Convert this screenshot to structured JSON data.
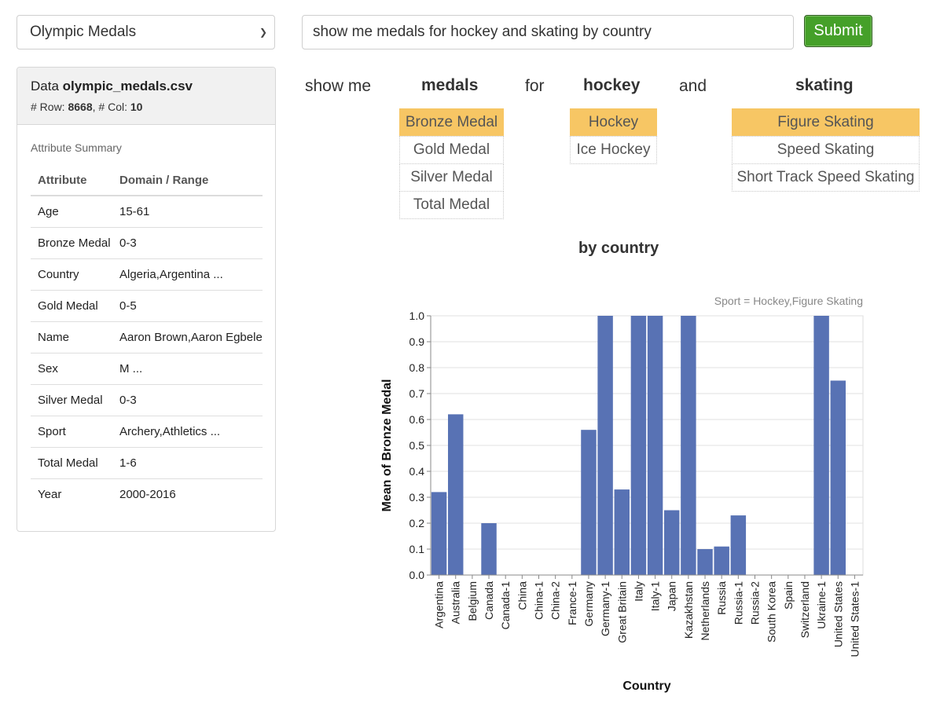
{
  "dataset_select": {
    "value": "Olympic Medals"
  },
  "query": {
    "value": "show me medals for hockey and skating by country"
  },
  "submit_label": "Submit",
  "panel": {
    "title_prefix": "Data ",
    "file": "olympic_medals.csv",
    "rows_label": "# Row: ",
    "rows": "8668",
    "cols_label": ", # Col: ",
    "cols": "10",
    "summary_label": "Attribute Summary",
    "col_attribute": "Attribute",
    "col_domain": "Domain / Range",
    "attributes": [
      {
        "name": "Age",
        "domain": "15-61"
      },
      {
        "name": "Bronze Medal",
        "domain": "0-3"
      },
      {
        "name": "Country",
        "domain": "Algeria,Argentina ..."
      },
      {
        "name": "Gold Medal",
        "domain": "0-5"
      },
      {
        "name": "Name",
        "domain": "Aaron Brown,Aaron Egbele ..."
      },
      {
        "name": "Sex",
        "domain": "M ..."
      },
      {
        "name": "Silver Medal",
        "domain": "0-3"
      },
      {
        "name": "Sport",
        "domain": "Archery,Athletics ..."
      },
      {
        "name": "Total Medal",
        "domain": "1-6"
      },
      {
        "name": "Year",
        "domain": "2000-2016"
      }
    ]
  },
  "tokens": {
    "show_me": "show me",
    "medals": "medals",
    "for": "for",
    "hockey": "hockey",
    "and": "and",
    "skating": "skating",
    "by_country": "by country"
  },
  "medals_options": [
    {
      "label": "Bronze Medal",
      "selected": true
    },
    {
      "label": "Gold Medal",
      "selected": false
    },
    {
      "label": "Silver Medal",
      "selected": false
    },
    {
      "label": "Total Medal",
      "selected": false
    }
  ],
  "hockey_options": [
    {
      "label": "Hockey",
      "selected": true
    },
    {
      "label": "Ice Hockey",
      "selected": false
    }
  ],
  "skating_options": [
    {
      "label": "Figure Skating",
      "selected": true
    },
    {
      "label": "Speed Skating",
      "selected": false
    },
    {
      "label": "Short Track Speed Skating",
      "selected": false
    }
  ],
  "chart_data": {
    "type": "bar",
    "title": "",
    "subtitle": "Sport = Hockey,Figure Skating",
    "xlabel": "Country",
    "ylabel": "Mean of Bronze Medal",
    "ylim": [
      0,
      1
    ],
    "yticks": [
      "0.0",
      "0.1",
      "0.2",
      "0.3",
      "0.4",
      "0.5",
      "0.6",
      "0.7",
      "0.8",
      "0.9",
      "1.0"
    ],
    "grid": true,
    "bar_color": "#5872b4",
    "categories": [
      "Argentina",
      "Australia",
      "Belgium",
      "Canada",
      "Canada-1",
      "China",
      "China-1",
      "China-2",
      "France-1",
      "Germany",
      "Germany-1",
      "Great Britain",
      "Italy",
      "Italy-1",
      "Japan",
      "Kazakhstan",
      "Netherlands",
      "Russia",
      "Russia-1",
      "Russia-2",
      "South Korea",
      "Spain",
      "Switzerland",
      "Ukraine-1",
      "United States",
      "United States-1"
    ],
    "values": [
      0.32,
      0.62,
      0,
      0.2,
      0,
      0,
      0,
      0,
      0,
      0.56,
      1.0,
      0.33,
      1.0,
      1.0,
      0.25,
      1.0,
      0.1,
      0.11,
      0.23,
      0,
      0,
      0,
      0,
      1.0,
      0.75,
      0
    ]
  }
}
